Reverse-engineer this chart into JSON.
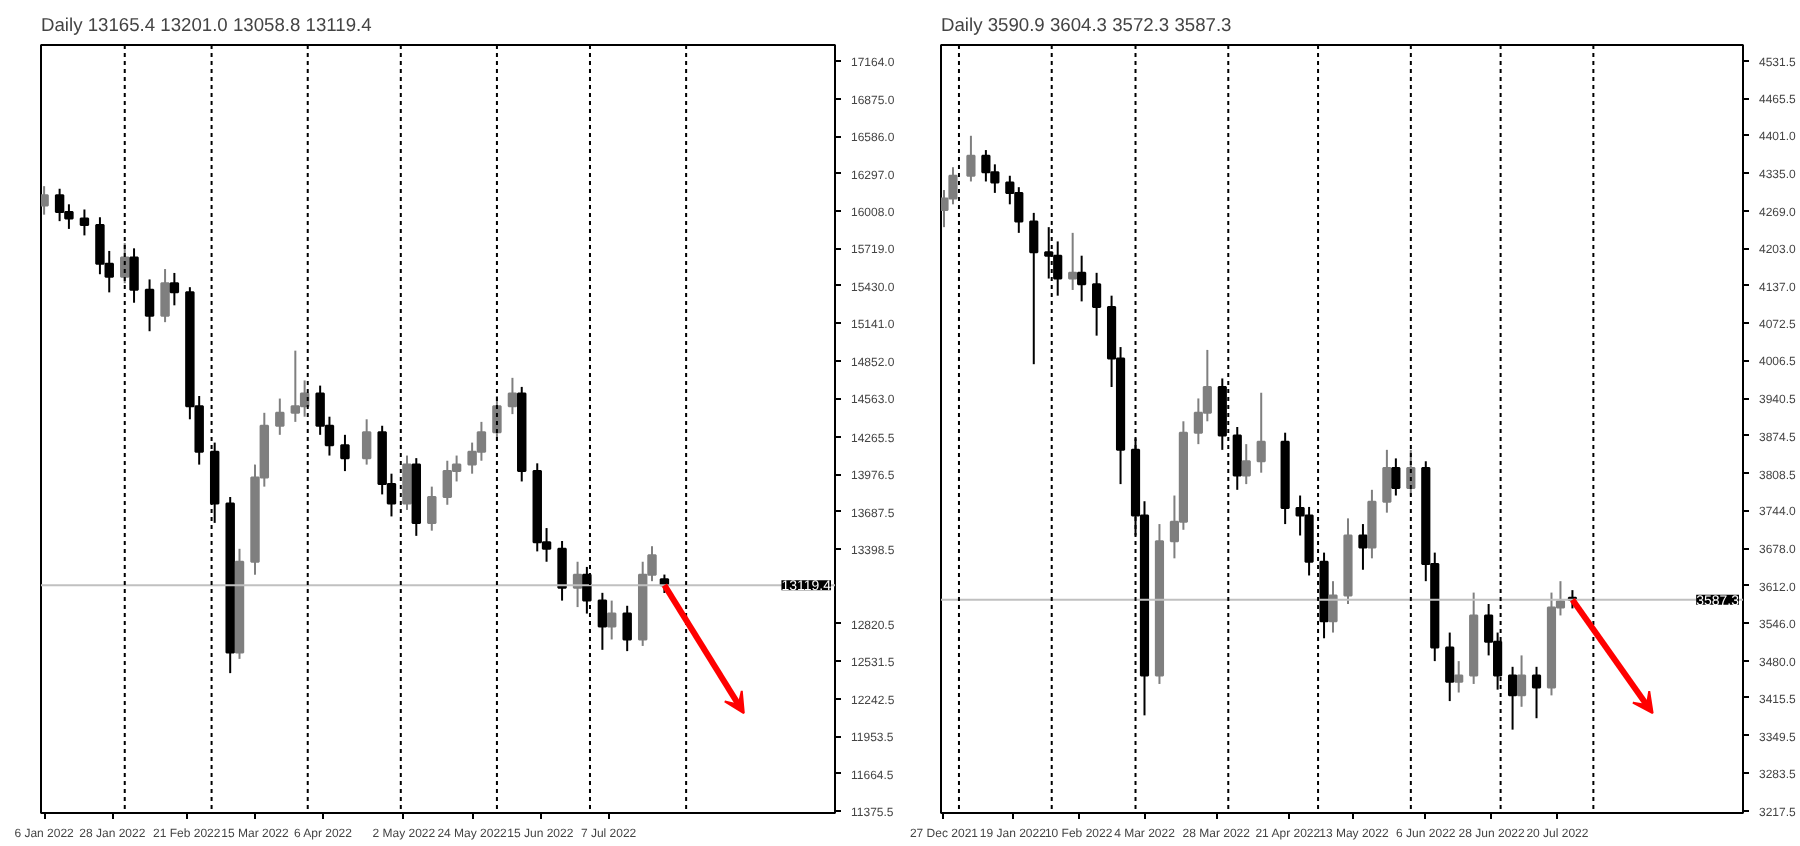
{
  "chart_data": [
    {
      "type": "candlestick",
      "title": "Daily 13165.4 13201.0 13058.8 13119.4",
      "x": [
        "2022-01-06",
        "2022-01-11",
        "2022-01-14",
        "2022-01-19",
        "2022-01-24",
        "2022-01-27",
        "2022-02-01",
        "2022-02-04",
        "2022-02-09",
        "2022-02-14",
        "2022-02-17",
        "2022-02-22",
        "2022-02-25",
        "2022-03-02",
        "2022-03-07",
        "2022-03-10",
        "2022-03-15",
        "2022-03-18",
        "2022-03-23",
        "2022-03-28",
        "2022-03-31",
        "2022-04-05",
        "2022-04-08",
        "2022-04-13",
        "2022-04-20",
        "2022-04-25",
        "2022-04-28",
        "2022-05-03",
        "2022-05-06",
        "2022-05-11",
        "2022-05-16",
        "2022-05-19",
        "2022-05-24",
        "2022-05-27",
        "2022-06-01",
        "2022-06-06",
        "2022-06-09",
        "2022-06-14",
        "2022-06-17",
        "2022-06-22",
        "2022-06-27",
        "2022-06-30",
        "2022-07-05",
        "2022-07-08",
        "2022-07-13",
        "2022-07-18",
        "2022-07-21",
        "2022-07-25"
      ],
      "ohlc": [
        [
          16050,
          16200,
          15980,
          16130
        ],
        [
          16130,
          16180,
          15930,
          16000
        ],
        [
          16000,
          16060,
          15870,
          15950
        ],
        [
          15950,
          16020,
          15820,
          15900
        ],
        [
          15900,
          15960,
          15520,
          15600
        ],
        [
          15600,
          15700,
          15380,
          15500
        ],
        [
          15500,
          15760,
          15450,
          15650
        ],
        [
          15650,
          15720,
          15300,
          15400
        ],
        [
          15400,
          15480,
          15080,
          15200
        ],
        [
          15200,
          15560,
          15150,
          15450
        ],
        [
          15450,
          15530,
          15280,
          15380
        ],
        [
          15380,
          15420,
          14400,
          14500
        ],
        [
          14500,
          14580,
          14050,
          14150
        ],
        [
          14150,
          14220,
          13600,
          13750
        ],
        [
          13750,
          13800,
          12440,
          12600
        ],
        [
          12600,
          13400,
          12550,
          13300
        ],
        [
          13300,
          14050,
          13200,
          13950
        ],
        [
          13950,
          14450,
          13880,
          14350
        ],
        [
          14350,
          14560,
          14280,
          14450
        ],
        [
          14450,
          14930,
          14380,
          14500
        ],
        [
          14500,
          14700,
          14420,
          14600
        ],
        [
          14600,
          14660,
          14280,
          14350
        ],
        [
          14350,
          14420,
          14120,
          14200
        ],
        [
          14200,
          14280,
          14000,
          14100
        ],
        [
          14100,
          14400,
          14050,
          14300
        ],
        [
          14300,
          14350,
          13820,
          13900
        ],
        [
          13900,
          13980,
          13650,
          13750
        ],
        [
          13750,
          14120,
          13700,
          14050
        ],
        [
          14050,
          14100,
          13500,
          13600
        ],
        [
          13600,
          13880,
          13540,
          13800
        ],
        [
          13800,
          14080,
          13740,
          14000
        ],
        [
          14000,
          14120,
          13920,
          14050
        ],
        [
          14050,
          14220,
          13980,
          14150
        ],
        [
          14150,
          14380,
          14080,
          14300
        ],
        [
          14300,
          14580,
          14240,
          14500
        ],
        [
          14500,
          14720,
          14440,
          14600
        ],
        [
          14600,
          14650,
          13920,
          14000
        ],
        [
          14000,
          14060,
          13380,
          13450
        ],
        [
          13450,
          13560,
          13300,
          13400
        ],
        [
          13400,
          13460,
          13000,
          13100
        ],
        [
          13100,
          13300,
          12950,
          13200
        ],
        [
          13200,
          13260,
          12900,
          13000
        ],
        [
          13000,
          13060,
          12620,
          12800
        ],
        [
          12800,
          13000,
          12700,
          12900
        ],
        [
          12900,
          12960,
          12610,
          12700
        ],
        [
          12700,
          13300,
          12650,
          13200
        ],
        [
          13200,
          13420,
          13150,
          13350
        ],
        [
          13165.4,
          13201.0,
          13058.8,
          13119.4
        ]
      ],
      "xlim": [
        "2022-01-05",
        "2022-09-18"
      ],
      "ylim": [
        11360,
        17290
      ],
      "xticks": [
        {
          "value": "2022-01-06",
          "label": "6 Jan 2022"
        },
        {
          "value": "2022-01-28",
          "label": "28 Jan 2022"
        },
        {
          "value": "2022-02-21",
          "label": "21 Feb 2022"
        },
        {
          "value": "2022-03-15",
          "label": "15 Mar 2022"
        },
        {
          "value": "2022-04-06",
          "label": "6 Apr 2022"
        },
        {
          "value": "2022-05-02",
          "label": "2 May 2022"
        },
        {
          "value": "2022-05-24",
          "label": "24 May 2022"
        },
        {
          "value": "2022-06-15",
          "label": "15 Jun 2022"
        },
        {
          "value": "2022-07-07",
          "label": "7 Jul 2022"
        }
      ],
      "yticks": [
        {
          "value": 17164.0,
          "label": "17164.0"
        },
        {
          "value": 16875.0,
          "label": "16875.0"
        },
        {
          "value": 16586.0,
          "label": "16586.0"
        },
        {
          "value": 16297.0,
          "label": "16297.0"
        },
        {
          "value": 16008.0,
          "label": "16008.0"
        },
        {
          "value": 15719.0,
          "label": "15719.0"
        },
        {
          "value": 15430.0,
          "label": "15430.0"
        },
        {
          "value": 15141.0,
          "label": "15141.0"
        },
        {
          "value": 14852.0,
          "label": "14852.0"
        },
        {
          "value": 14563.0,
          "label": "14563.0"
        },
        {
          "value": 14265.5,
          "label": "14265.5"
        },
        {
          "value": 13976.5,
          "label": "13976.5"
        },
        {
          "value": 13687.5,
          "label": "13687.5"
        },
        {
          "value": 13398.5,
          "label": "13398.5"
        },
        {
          "value": 12820.5,
          "label": "12820.5"
        },
        {
          "value": 12531.5,
          "label": "12531.5"
        },
        {
          "value": 12242.5,
          "label": "12242.5"
        },
        {
          "value": 11953.5,
          "label": "11953.5"
        },
        {
          "value": 11664.5,
          "label": "11664.5"
        },
        {
          "value": 11375.5,
          "label": "11375.5"
        }
      ],
      "ref_lines": [
        {
          "axis": "y",
          "value": 13119.4,
          "label": "13119.4",
          "color": "#c0c0c0"
        },
        {
          "axis": "x",
          "value": "2022-02-01",
          "color": "#000000",
          "line_style": "dashed"
        },
        {
          "axis": "x",
          "value": "2022-03-01",
          "color": "#000000",
          "line_style": "dashed"
        },
        {
          "axis": "x",
          "value": "2022-04-01",
          "color": "#000000",
          "line_style": "dashed"
        },
        {
          "axis": "x",
          "value": "2022-05-01",
          "color": "#000000",
          "line_style": "dashed"
        },
        {
          "axis": "x",
          "value": "2022-06-01",
          "color": "#000000",
          "line_style": "dashed"
        },
        {
          "axis": "x",
          "value": "2022-07-01",
          "color": "#000000",
          "line_style": "dashed"
        },
        {
          "axis": "x",
          "value": "2022-08-01",
          "color": "#000000",
          "line_style": "dashed"
        }
      ],
      "grid": false
    },
    {
      "type": "candlestick",
      "title": "Daily 3590.9 3604.3 3572.3 3587.3",
      "x": [
        "2021-12-27",
        "2021-12-30",
        "2022-01-05",
        "2022-01-10",
        "2022-01-13",
        "2022-01-18",
        "2022-01-21",
        "2022-01-26",
        "2022-01-31",
        "2022-02-03",
        "2022-02-08",
        "2022-02-11",
        "2022-02-16",
        "2022-02-21",
        "2022-02-24",
        "2022-03-01",
        "2022-03-04",
        "2022-03-09",
        "2022-03-14",
        "2022-03-17",
        "2022-03-22",
        "2022-03-25",
        "2022-03-30",
        "2022-04-04",
        "2022-04-07",
        "2022-04-12",
        "2022-04-20",
        "2022-04-25",
        "2022-04-28",
        "2022-05-03",
        "2022-05-06",
        "2022-05-11",
        "2022-05-16",
        "2022-05-19",
        "2022-05-24",
        "2022-05-27",
        "2022-06-01",
        "2022-06-06",
        "2022-06-09",
        "2022-06-14",
        "2022-06-17",
        "2022-06-22",
        "2022-06-27",
        "2022-06-30",
        "2022-07-05",
        "2022-07-08",
        "2022-07-13",
        "2022-07-18",
        "2022-07-21",
        "2022-07-25"
      ],
      "ohlc": [
        [
          4270,
          4305,
          4240,
          4290
        ],
        [
          4290,
          4345,
          4280,
          4330
        ],
        [
          4330,
          4400,
          4320,
          4365
        ],
        [
          4365,
          4375,
          4320,
          4336
        ],
        [
          4336,
          4350,
          4300,
          4318
        ],
        [
          4318,
          4330,
          4280,
          4300
        ],
        [
          4300,
          4310,
          4230,
          4250
        ],
        [
          4250,
          4265,
          4000,
          4196
        ],
        [
          4196,
          4240,
          4150,
          4190
        ],
        [
          4190,
          4215,
          4120,
          4150
        ],
        [
          4150,
          4230,
          4130,
          4160
        ],
        [
          4160,
          4190,
          4110,
          4140
        ],
        [
          4140,
          4160,
          4050,
          4100
        ],
        [
          4100,
          4120,
          3960,
          4010
        ],
        [
          4010,
          4030,
          3790,
          3850
        ],
        [
          3850,
          3870,
          3700,
          3735
        ],
        [
          3735,
          3760,
          3385,
          3455
        ],
        [
          3455,
          3720,
          3440,
          3690
        ],
        [
          3690,
          3770,
          3660,
          3724
        ],
        [
          3724,
          3900,
          3710,
          3880
        ],
        [
          3880,
          3940,
          3860,
          3915
        ],
        [
          3915,
          4025,
          3900,
          3960
        ],
        [
          3960,
          3975,
          3850,
          3875
        ],
        [
          3875,
          3890,
          3780,
          3805
        ],
        [
          3805,
          3860,
          3790,
          3830
        ],
        [
          3830,
          3950,
          3810,
          3864
        ],
        [
          3864,
          3880,
          3720,
          3748
        ],
        [
          3748,
          3770,
          3700,
          3735
        ],
        [
          3735,
          3750,
          3630,
          3654
        ],
        [
          3654,
          3670,
          3520,
          3550
        ],
        [
          3550,
          3620,
          3530,
          3595
        ],
        [
          3595,
          3730,
          3580,
          3700
        ],
        [
          3700,
          3720,
          3640,
          3679
        ],
        [
          3679,
          3780,
          3660,
          3759
        ],
        [
          3759,
          3850,
          3740,
          3818
        ],
        [
          3818,
          3835,
          3770,
          3783
        ],
        [
          3783,
          3850,
          3770,
          3818
        ],
        [
          3818,
          3830,
          3620,
          3650
        ],
        [
          3650,
          3670,
          3480,
          3504
        ],
        [
          3504,
          3530,
          3410,
          3444
        ],
        [
          3444,
          3480,
          3425,
          3455
        ],
        [
          3455,
          3600,
          3440,
          3560
        ],
        [
          3560,
          3580,
          3490,
          3514
        ],
        [
          3514,
          3530,
          3430,
          3455
        ],
        [
          3455,
          3470,
          3360,
          3420
        ],
        [
          3420,
          3490,
          3400,
          3455
        ],
        [
          3455,
          3470,
          3380,
          3434
        ],
        [
          3434,
          3600,
          3420,
          3574
        ],
        [
          3574,
          3620,
          3560,
          3585
        ],
        [
          3590.9,
          3604.3,
          3572.3,
          3587.3
        ]
      ],
      "xlim": [
        "2021-12-26",
        "2022-09-20"
      ],
      "ylim": [
        3214,
        4559
      ],
      "xticks": [
        {
          "value": "2021-12-27",
          "label": "27 Dec 2021"
        },
        {
          "value": "2022-01-19",
          "label": "19 Jan 2022"
        },
        {
          "value": "2022-02-10",
          "label": "10 Feb 2022"
        },
        {
          "value": "2022-03-04",
          "label": "4 Mar 2022"
        },
        {
          "value": "2022-03-28",
          "label": "28 Mar 2022"
        },
        {
          "value": "2022-04-21",
          "label": "21 Apr 2022"
        },
        {
          "value": "2022-05-13",
          "label": "13 May 2022"
        },
        {
          "value": "2022-06-06",
          "label": "6 Jun 2022"
        },
        {
          "value": "2022-06-28",
          "label": "28 Jun 2022"
        },
        {
          "value": "2022-07-20",
          "label": "20 Jul 2022"
        }
      ],
      "yticks": [
        {
          "value": 4531.5,
          "label": "4531.5"
        },
        {
          "value": 4465.5,
          "label": "4465.5"
        },
        {
          "value": 4401.0,
          "label": "4401.0"
        },
        {
          "value": 4335.0,
          "label": "4335.0"
        },
        {
          "value": 4269.0,
          "label": "4269.0"
        },
        {
          "value": 4203.0,
          "label": "4203.0"
        },
        {
          "value": 4137.0,
          "label": "4137.0"
        },
        {
          "value": 4072.5,
          "label": "4072.5"
        },
        {
          "value": 4006.5,
          "label": "4006.5"
        },
        {
          "value": 3940.5,
          "label": "3940.5"
        },
        {
          "value": 3874.5,
          "label": "3874.5"
        },
        {
          "value": 3808.5,
          "label": "3808.5"
        },
        {
          "value": 3744.0,
          "label": "3744.0"
        },
        {
          "value": 3678.0,
          "label": "3678.0"
        },
        {
          "value": 3612.0,
          "label": "3612.0"
        },
        {
          "value": 3546.0,
          "label": "3546.0"
        },
        {
          "value": 3480.0,
          "label": "3480.0"
        },
        {
          "value": 3415.5,
          "label": "3415.5"
        },
        {
          "value": 3349.5,
          "label": "3349.5"
        },
        {
          "value": 3283.5,
          "label": "3283.5"
        },
        {
          "value": 3217.5,
          "label": "3217.5"
        }
      ],
      "ref_lines": [
        {
          "axis": "y",
          "value": 3587.3,
          "label": "3587.3",
          "color": "#c0c0c0"
        },
        {
          "axis": "x",
          "value": "2022-01-01",
          "color": "#000000",
          "line_style": "dashed"
        },
        {
          "axis": "x",
          "value": "2022-02-01",
          "color": "#000000",
          "line_style": "dashed"
        },
        {
          "axis": "x",
          "value": "2022-03-01",
          "color": "#000000",
          "line_style": "dashed"
        },
        {
          "axis": "x",
          "value": "2022-04-01",
          "color": "#000000",
          "line_style": "dashed"
        },
        {
          "axis": "x",
          "value": "2022-05-01",
          "color": "#000000",
          "line_style": "dashed"
        },
        {
          "axis": "x",
          "value": "2022-06-01",
          "color": "#000000",
          "line_style": "dashed"
        },
        {
          "axis": "x",
          "value": "2022-07-01",
          "color": "#000000",
          "line_style": "dashed"
        },
        {
          "axis": "x",
          "value": "2022-08-01",
          "color": "#000000",
          "line_style": "dashed"
        }
      ],
      "grid": false
    }
  ]
}
